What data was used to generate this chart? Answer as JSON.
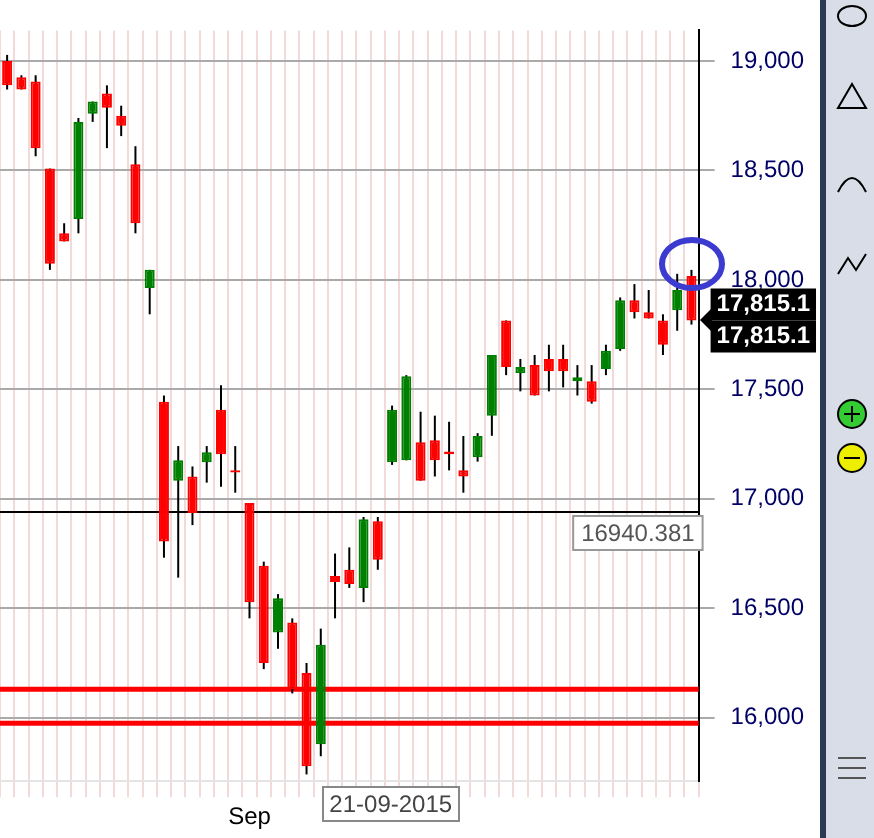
{
  "chart_data": {
    "type": "candlestick",
    "categories": [
      null,
      null,
      null,
      null,
      null,
      null,
      null,
      null,
      null,
      null,
      null,
      null,
      null,
      null,
      null,
      null,
      null,
      "Sep",
      null,
      null,
      null,
      null,
      null,
      null,
      null,
      null,
      null,
      null,
      null,
      null,
      null,
      null,
      null,
      null,
      null,
      null,
      null,
      null,
      null,
      null,
      null,
      null,
      null,
      null,
      null,
      null,
      null,
      null,
      null
    ],
    "ohlc": [
      [
        19000,
        19028,
        18870,
        18889
      ],
      [
        18926,
        18935,
        18870,
        18870
      ],
      [
        18907,
        18935,
        18565,
        18602
      ],
      [
        18509,
        18509,
        18046,
        18074
      ],
      [
        18213,
        18259,
        18176,
        18176
      ],
      [
        18278,
        18740,
        18213,
        18722
      ],
      [
        18759,
        18815,
        18722,
        18815
      ],
      [
        18852,
        18889,
        18602,
        18787
      ],
      [
        18750,
        18796,
        18657,
        18704
      ],
      [
        18528,
        18611,
        18213,
        18259
      ],
      [
        17963,
        18046,
        17843,
        18046
      ],
      [
        17444,
        17472,
        16731,
        16805
      ],
      [
        17083,
        17241,
        16640,
        17176
      ],
      [
        17102,
        17148,
        16880,
        16935
      ],
      [
        17167,
        17241,
        17074,
        17213
      ],
      [
        17407,
        17519,
        17055,
        17204
      ],
      [
        17130,
        17241,
        17028,
        17120
      ],
      [
        16981,
        16981,
        16454,
        16528
      ],
      [
        16694,
        16713,
        16222,
        16250
      ],
      [
        16389,
        16565,
        16315,
        16546
      ],
      [
        16435,
        16454,
        16111,
        16130
      ],
      [
        16204,
        16250,
        15741,
        15778
      ],
      [
        15879,
        16407,
        15824,
        16333
      ],
      [
        16648,
        16750,
        16454,
        16620
      ],
      [
        16676,
        16778,
        16593,
        16611
      ],
      [
        16593,
        16917,
        16528,
        16907
      ],
      [
        16898,
        16917,
        16676,
        16722
      ],
      [
        17167,
        17426,
        17155,
        17407
      ],
      [
        17176,
        17565,
        17176,
        17560
      ],
      [
        17259,
        17398,
        17083,
        17083
      ],
      [
        17268,
        17380,
        17102,
        17176
      ],
      [
        17216,
        17352,
        17130,
        17204
      ],
      [
        17130,
        17287,
        17028,
        17102
      ],
      [
        17190,
        17300,
        17170,
        17287
      ],
      [
        17380,
        17657,
        17288,
        17657
      ],
      [
        17815,
        17815,
        17565,
        17602
      ],
      [
        17574,
        17639,
        17491,
        17602
      ],
      [
        17611,
        17657,
        17472,
        17472
      ],
      [
        17639,
        17704,
        17491,
        17583
      ],
      [
        17639,
        17704,
        17509,
        17583
      ],
      [
        17537,
        17611,
        17472,
        17556
      ],
      [
        17537,
        17611,
        17435,
        17444
      ],
      [
        17593,
        17704,
        17565,
        17676
      ],
      [
        17685,
        17920,
        17676,
        17907
      ],
      [
        17907,
        17981,
        17824,
        17852
      ],
      [
        17852,
        17954,
        17824,
        17824
      ],
      [
        17815,
        17843,
        17657,
        17704
      ],
      [
        17861,
        18028,
        17768,
        17954
      ],
      [
        18018,
        18046,
        17796,
        17815
      ]
    ],
    "ylim": [
      15710,
      19140
    ],
    "yticks": [
      {
        "value": 16000,
        "label": "16,000"
      },
      {
        "value": 16500,
        "label": "16,500"
      },
      {
        "value": 17000,
        "label": "17,000"
      },
      {
        "value": 17500,
        "label": "17,500"
      },
      {
        "value": 18000,
        "label": "18,000"
      },
      {
        "value": 18500,
        "label": "18,500"
      },
      {
        "value": 19000,
        "label": "19,000"
      }
    ],
    "colors": [
      "#ff0000",
      "#ff0000",
      "#ff0000",
      "#ff0000",
      "#ff0000",
      "#008000",
      "#008000",
      "#ff0000",
      "#ff0000",
      "#ff0000",
      "#008000",
      "#ff0000",
      "#008000",
      "#ff0000",
      "#008000",
      "#ff0000",
      "#ff0000",
      "#ff0000",
      "#ff0000",
      "#008000",
      "#ff0000",
      "#ff0000",
      "#008000",
      "#ff0000",
      "#ff0000",
      "#008000",
      "#ff0000",
      "#008000",
      "#008000",
      "#ff0000",
      "#ff0000",
      "#ff0000",
      "#ff0000",
      "#008000",
      "#008000",
      "#ff0000",
      "#008000",
      "#ff0000",
      "#ff0000",
      "#ff0000",
      "#008000",
      "#ff0000",
      "#008000",
      "#008000",
      "#ff0000",
      "#ff0000",
      "#ff0000",
      "#008000",
      "#ff0000"
    ],
    "grid": true,
    "ref_lines": [
      {
        "axis": "y",
        "value": 16940.381,
        "label": "16940.381",
        "color": "#000000"
      },
      {
        "axis": "y",
        "value": 16130,
        "color": "#ff0000"
      },
      {
        "axis": "y",
        "value": 15975,
        "color": "#ff0000"
      }
    ],
    "annotations": [
      "17,815.1",
      "17,815.1",
      "21-09-2015"
    ]
  }
}
